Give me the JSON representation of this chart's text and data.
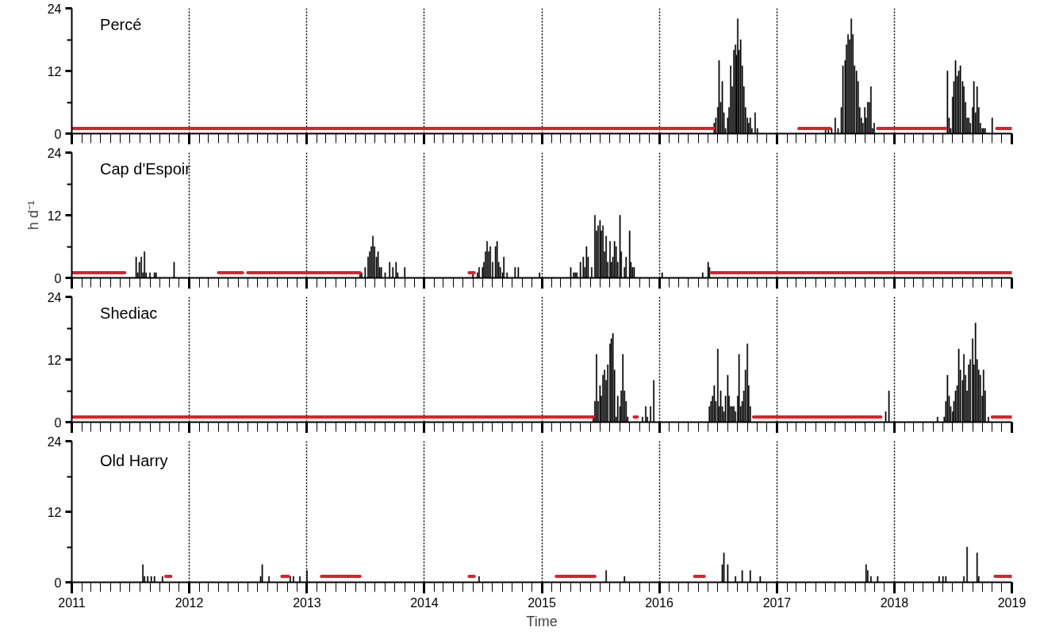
{
  "chart_data": [
    {
      "type": "bar",
      "title": "Percé",
      "xlim": [
        "2011",
        "2019"
      ],
      "ylim": [
        0,
        24
      ],
      "xticks": [
        "2011",
        "2012",
        "2013",
        "2014",
        "2015",
        "2016",
        "2017",
        "2018",
        "2019"
      ],
      "yticks": [
        0,
        12,
        24
      ],
      "grid": "x",
      "tick_labels": "y",
      "series": [
        {
          "color": "#000000",
          "x": [
            "2016-06-20",
            "2016-06-25",
            "2016-07-01",
            "2016-07-05",
            "2016-07-10",
            "2016-07-15",
            "2016-07-20",
            "2016-07-25",
            "2016-08-01",
            "2016-08-05",
            "2016-08-10",
            "2016-08-15",
            "2016-08-20",
            "2016-08-25",
            "2016-08-28",
            "2016-09-01",
            "2016-09-05",
            "2016-09-10",
            "2016-09-15",
            "2016-09-20",
            "2016-09-25",
            "2016-10-01",
            "2016-10-05",
            "2016-10-10",
            "2016-10-15",
            "2016-10-25",
            "2016-11-01",
            "2017-06-01",
            "2017-06-10",
            "2017-06-20",
            "2017-07-01",
            "2017-07-10",
            "2017-07-20",
            "2017-07-25",
            "2017-08-01",
            "2017-08-05",
            "2017-08-10",
            "2017-08-15",
            "2017-08-20",
            "2017-08-25",
            "2017-08-30",
            "2017-09-05",
            "2017-09-10",
            "2017-09-15",
            "2017-09-20",
            "2017-09-25",
            "2017-10-01",
            "2017-10-05",
            "2017-10-10",
            "2017-10-15",
            "2017-10-20",
            "2017-10-25",
            "2017-10-30",
            "2018-06-15",
            "2018-06-20",
            "2018-06-25",
            "2018-07-01",
            "2018-07-05",
            "2018-07-10",
            "2018-07-15",
            "2018-07-20",
            "2018-07-25",
            "2018-08-01",
            "2018-08-05",
            "2018-08-10",
            "2018-08-15",
            "2018-08-20",
            "2018-08-25",
            "2018-09-01",
            "2018-09-05",
            "2018-09-10",
            "2018-09-15",
            "2018-09-20",
            "2018-09-25",
            "2018-10-01",
            "2018-10-05",
            "2018-10-10",
            "2018-11-01"
          ],
          "values": [
            2,
            3,
            5,
            14,
            6,
            10,
            4,
            1,
            3,
            5,
            13,
            9,
            16,
            17,
            15,
            22,
            16,
            18,
            13,
            9,
            5,
            3,
            2,
            3,
            1,
            4,
            1,
            1,
            1,
            1,
            3,
            1,
            5,
            13,
            14,
            17,
            19,
            18,
            22,
            19,
            13,
            12,
            10,
            5,
            3,
            2,
            5,
            3,
            6,
            6,
            9,
            1,
            2,
            12,
            3,
            1,
            7,
            10,
            14,
            11,
            12,
            13,
            10,
            9,
            6,
            3,
            3,
            2,
            5,
            10,
            4,
            9,
            5,
            2,
            1,
            1,
            1,
            3
          ]
        },
        {
          "type": "line",
          "color": "#e41e26",
          "x": [
            "2011-01-01",
            "2016-06-20",
            "2016-12-01",
            "2017-03-10",
            "2017-06-15",
            "2017-07-01",
            "2017-11-10",
            "2018-06-10",
            "2018-08-01",
            "2018-11-15",
            "2019-01-01"
          ],
          "values": [
            1,
            1,
            null,
            1,
            1,
            null,
            1,
            1,
            null,
            1,
            1
          ]
        }
      ]
    },
    {
      "type": "bar",
      "title": "Cap d'Espoir",
      "ylabel": "h d⁻¹",
      "xlim": [
        "2011",
        "2019"
      ],
      "ylim": [
        0,
        24
      ],
      "xticks": [
        "2011",
        "2012",
        "2013",
        "2014",
        "2015",
        "2016",
        "2017",
        "2018",
        "2019"
      ],
      "yticks": [
        0,
        12,
        24
      ],
      "grid": "x",
      "tick_labels": "y",
      "series": [
        {
          "color": "#000000",
          "x": [
            "2011-07-20",
            "2011-07-25",
            "2011-07-30",
            "2011-08-05",
            "2011-08-10",
            "2011-08-15",
            "2011-08-20",
            "2011-09-01",
            "2011-09-15",
            "2011-09-20",
            "2011-11-15",
            "2013-06-15",
            "2013-06-20",
            "2013-07-01",
            "2013-07-10",
            "2013-07-15",
            "2013-07-20",
            "2013-07-25",
            "2013-07-30",
            "2013-08-05",
            "2013-08-10",
            "2013-08-15",
            "2013-08-20",
            "2013-09-01",
            "2013-09-15",
            "2013-09-25",
            "2013-10-05",
            "2013-10-10",
            "2013-11-01",
            "2014-06-01",
            "2014-06-15",
            "2014-06-20",
            "2014-07-01",
            "2014-07-05",
            "2014-07-10",
            "2014-07-15",
            "2014-07-20",
            "2014-07-25",
            "2014-08-01",
            "2014-08-10",
            "2014-08-15",
            "2014-08-20",
            "2014-08-25",
            "2014-09-01",
            "2014-09-05",
            "2014-09-15",
            "2014-10-10",
            "2014-10-20",
            "2014-12-25",
            "2015-04-01",
            "2015-04-10",
            "2015-04-15",
            "2015-04-20",
            "2015-05-01",
            "2015-05-10",
            "2015-05-15",
            "2015-05-20",
            "2015-05-25",
            "2015-06-05",
            "2015-06-15",
            "2015-06-20",
            "2015-06-25",
            "2015-07-01",
            "2015-07-05",
            "2015-07-10",
            "2015-07-15",
            "2015-07-20",
            "2015-07-25",
            "2015-08-01",
            "2015-08-05",
            "2015-08-10",
            "2015-08-15",
            "2015-08-20",
            "2015-08-25",
            "2015-09-01",
            "2015-09-05",
            "2015-09-15",
            "2015-09-20",
            "2015-10-01",
            "2015-10-05",
            "2015-10-10",
            "2015-10-15",
            "2016-01-10",
            "2016-05-15",
            "2016-06-01",
            "2016-06-05"
          ],
          "values": [
            4,
            1,
            3,
            4,
            1,
            5,
            1,
            1,
            1,
            1,
            3,
            1,
            1,
            2,
            4,
            5,
            6,
            8,
            6,
            4,
            5,
            2,
            2,
            1,
            3,
            2,
            3,
            1,
            2,
            1,
            1,
            2,
            2,
            3,
            5,
            7,
            5,
            6,
            3,
            6,
            7,
            3,
            2,
            1,
            4,
            1,
            2,
            2,
            1,
            2,
            1,
            1,
            1,
            3,
            4,
            2,
            6,
            4,
            2,
            12,
            9,
            10,
            11,
            9,
            10,
            5,
            8,
            3,
            7,
            3,
            4,
            7,
            6,
            3,
            12,
            5,
            2,
            4,
            9,
            3,
            2,
            2,
            1,
            1,
            3,
            2
          ]
        },
        {
          "type": "line",
          "color": "#e41e26",
          "x": [
            "2011-01-01",
            "2011-06-15",
            "2011-12-01",
            "2012-04-01",
            "2012-06-15",
            "2012-06-22",
            "2012-07-01",
            "2013-06-15",
            "2014-01-01",
            "2014-05-20",
            "2014-06-05",
            "2015-06-01",
            "2016-06-10",
            "2019-01-01"
          ],
          "values": [
            1,
            1,
            null,
            1,
            1,
            null,
            1,
            1,
            null,
            1,
            1,
            null,
            1,
            1
          ]
        }
      ]
    },
    {
      "type": "bar",
      "title": "Shediac",
      "xlim": [
        "2011",
        "2019"
      ],
      "ylim": [
        0,
        24
      ],
      "xticks": [
        "2011",
        "2012",
        "2013",
        "2014",
        "2015",
        "2016",
        "2017",
        "2018",
        "2019"
      ],
      "yticks": [
        0,
        12,
        24
      ],
      "grid": "x",
      "tick_labels": "y",
      "series": [
        {
          "color": "#000000",
          "x": [
            "2015-06-10",
            "2015-06-15",
            "2015-06-20",
            "2015-06-25",
            "2015-07-01",
            "2015-07-05",
            "2015-07-10",
            "2015-07-15",
            "2015-07-20",
            "2015-07-25",
            "2015-08-01",
            "2015-08-05",
            "2015-08-10",
            "2015-08-15",
            "2015-08-20",
            "2015-08-25",
            "2015-09-01",
            "2015-09-05",
            "2015-09-10",
            "2015-09-15",
            "2015-09-20",
            "2015-09-25",
            "2015-11-10",
            "2015-11-20",
            "2015-11-25",
            "2015-12-05",
            "2015-12-15",
            "2016-06-05",
            "2016-06-10",
            "2016-06-15",
            "2016-06-20",
            "2016-06-25",
            "2016-07-01",
            "2016-07-05",
            "2016-07-10",
            "2016-07-15",
            "2016-07-20",
            "2016-07-25",
            "2016-08-01",
            "2016-08-05",
            "2016-08-10",
            "2016-08-15",
            "2016-08-20",
            "2016-08-25",
            "2016-09-01",
            "2016-09-05",
            "2016-09-10",
            "2016-09-15",
            "2016-09-20",
            "2016-09-25",
            "2016-10-01",
            "2016-10-05",
            "2016-10-10",
            "2017-12-05",
            "2017-12-15",
            "2018-05-15",
            "2018-06-05",
            "2018-06-10",
            "2018-06-15",
            "2018-06-20",
            "2018-06-25",
            "2018-07-01",
            "2018-07-05",
            "2018-07-10",
            "2018-07-15",
            "2018-07-20",
            "2018-07-25",
            "2018-08-01",
            "2018-08-05",
            "2018-08-10",
            "2018-08-15",
            "2018-08-20",
            "2018-08-25",
            "2018-09-01",
            "2018-09-05",
            "2018-09-10",
            "2018-09-15",
            "2018-09-20",
            "2018-09-25",
            "2018-10-01",
            "2018-10-05",
            "2018-10-10",
            "2018-10-20"
          ],
          "values": [
            1,
            4,
            13,
            4,
            7,
            5,
            9,
            10,
            8,
            11,
            15,
            16,
            17,
            10,
            1,
            5,
            3,
            6,
            13,
            6,
            4,
            1,
            1,
            3,
            1,
            3,
            8,
            3,
            4,
            5,
            7,
            4,
            14,
            3,
            6,
            3,
            2,
            5,
            9,
            5,
            3,
            3,
            3,
            2,
            5,
            13,
            3,
            4,
            6,
            10,
            15,
            7,
            3,
            2,
            6,
            1,
            1,
            4,
            9,
            5,
            3,
            2,
            4,
            6,
            7,
            14,
            10,
            8,
            13,
            9,
            6,
            11,
            12,
            16,
            11,
            19,
            12,
            10,
            9,
            5,
            10,
            6,
            1
          ]
        },
        {
          "type": "line",
          "color": "#e41e26",
          "x": [
            "2011-01-01",
            "2015-06-10",
            "2015-08-01",
            "2015-10-15",
            "2015-10-25",
            "2016-03-01",
            "2016-10-20",
            "2017-11-20",
            "2018-03-01",
            "2018-11-01",
            "2019-01-01"
          ],
          "values": [
            1,
            1,
            null,
            1,
            1,
            null,
            1,
            1,
            null,
            1,
            1
          ]
        }
      ]
    },
    {
      "type": "bar",
      "title": "Old Harry",
      "xlabel": "Time",
      "xlim": [
        "2011",
        "2019"
      ],
      "ylim": [
        0,
        24
      ],
      "xticks": [
        "2011",
        "2012",
        "2013",
        "2014",
        "2015",
        "2016",
        "2017",
        "2018",
        "2019"
      ],
      "yticks": [
        0,
        12,
        24
      ],
      "grid": "x",
      "series": [
        {
          "color": "#000000",
          "x": [
            "2011-08-10",
            "2011-08-15",
            "2011-08-25",
            "2011-09-05",
            "2011-09-15",
            "2011-10-10",
            "2012-08-10",
            "2012-08-15",
            "2012-09-05",
            "2012-11-10",
            "2012-11-20",
            "2012-12-10",
            "2013-01-01",
            "2014-06-20",
            "2015-07-20",
            "2015-09-15",
            "2016-07-15",
            "2016-07-20",
            "2016-08-01",
            "2016-08-25",
            "2016-09-15",
            "2016-10-10",
            "2016-11-10",
            "2017-10-05",
            "2017-10-10",
            "2017-10-20",
            "2017-11-10",
            "2018-05-20",
            "2018-06-01",
            "2018-06-10",
            "2018-08-05",
            "2018-08-15",
            "2018-09-15",
            "2018-09-20"
          ],
          "values": [
            3,
            1,
            1,
            1,
            1,
            1,
            1,
            3,
            1,
            1,
            1,
            1,
            2,
            1,
            2,
            1,
            3,
            5,
            3,
            1,
            2,
            2,
            1,
            3,
            2,
            1,
            1,
            1,
            1,
            1,
            1,
            6,
            5,
            1
          ]
        },
        {
          "type": "line",
          "color": "#e41e26",
          "x": [
            "2011-10-20",
            "2011-11-05",
            "2012-03-01",
            "2012-10-15",
            "2012-11-05",
            "2012-12-15",
            "2013-02-15",
            "2013-06-15",
            "2014-01-01",
            "2014-05-20",
            "2014-06-05",
            "2014-10-01",
            "2015-02-15",
            "2015-06-15",
            "2015-12-01",
            "2016-04-20",
            "2016-05-20",
            "2017-06-01",
            "2018-11-10",
            "2019-01-01"
          ],
          "values": [
            1,
            1,
            null,
            1,
            1,
            null,
            1,
            1,
            null,
            1,
            1,
            null,
            1,
            1,
            null,
            1,
            1,
            null,
            1,
            1
          ]
        }
      ]
    }
  ]
}
